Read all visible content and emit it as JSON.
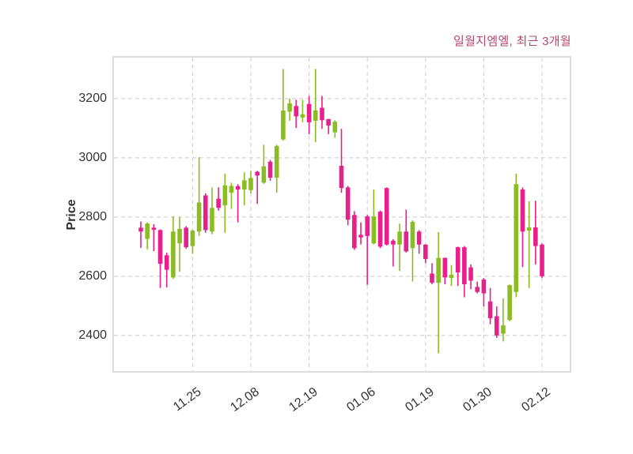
{
  "title": "일월지엠엘, 최근 3개월",
  "ylabel": "Price",
  "chart_data": {
    "type": "candlestick",
    "title": "일월지엠엘, 최근 3개월",
    "ylabel": "Price",
    "xlabel": "",
    "grid": true,
    "ylim": [
      2277,
      3341
    ],
    "yticks": [
      2400,
      2600,
      2800,
      3000,
      3200
    ],
    "xtick_labels": [
      "11.25",
      "12.08",
      "12.19",
      "01.06",
      "01.19",
      "01.30",
      "02.12"
    ],
    "xtick_indices": [
      8,
      17,
      26,
      35,
      44,
      53,
      62
    ],
    "colors": {
      "bull": "#8BBD22",
      "bear": "#E7218C",
      "grid": "#d4d4d4",
      "spine": "#dcdcdc",
      "tick_text": "#333333",
      "title_text": "#b5476f"
    },
    "series_note": "candles are [open, high, low, close]; bull=green (close>open), bear=pink (close<open)",
    "candles": [
      [
        2764,
        2785,
        2696,
        2751
      ],
      [
        2726,
        2782,
        2691,
        2778
      ],
      [
        2764,
        2776,
        2685,
        2757
      ],
      [
        2756,
        2758,
        2560,
        2642
      ],
      [
        2671,
        2680,
        2562,
        2622
      ],
      [
        2596,
        2802,
        2591,
        2751
      ],
      [
        2711,
        2800,
        2615,
        2760
      ],
      [
        2764,
        2769,
        2693,
        2698
      ],
      [
        2702,
        2757,
        2676,
        2754
      ],
      [
        2751,
        3002,
        2736,
        2849
      ],
      [
        2873,
        2880,
        2747,
        2756
      ],
      [
        2751,
        2900,
        2742,
        2831
      ],
      [
        2862,
        2900,
        2822,
        2831
      ],
      [
        2840,
        2947,
        2747,
        2907
      ],
      [
        2882,
        2916,
        2827,
        2905
      ],
      [
        2904,
        2911,
        2782,
        2893
      ],
      [
        2893,
        2951,
        2840,
        2924
      ],
      [
        2891,
        2956,
        2880,
        2932
      ],
      [
        2953,
        2956,
        2844,
        2940
      ],
      [
        2916,
        3044,
        2912,
        2971
      ],
      [
        2987,
        2993,
        2922,
        2933
      ],
      [
        2933,
        3044,
        2882,
        3040
      ],
      [
        3062,
        3300,
        3058,
        3160
      ],
      [
        3156,
        3200,
        3125,
        3184
      ],
      [
        3175,
        3196,
        3101,
        3140
      ],
      [
        3136,
        3196,
        3120,
        3147
      ],
      [
        3182,
        3209,
        3080,
        3120
      ],
      [
        3125,
        3300,
        3053,
        3160
      ],
      [
        3169,
        3209,
        3098,
        3127
      ],
      [
        3131,
        3131,
        3080,
        3109
      ],
      [
        3086,
        3127,
        3068,
        3122
      ],
      [
        2973,
        3098,
        2882,
        2898
      ],
      [
        2900,
        2905,
        2772,
        2791
      ],
      [
        2807,
        2820,
        2689,
        2695
      ],
      [
        2740,
        2782,
        2707,
        2731
      ],
      [
        2802,
        2807,
        2571,
        2736
      ],
      [
        2711,
        2893,
        2707,
        2802
      ],
      [
        2818,
        2822,
        2695,
        2700
      ],
      [
        2898,
        2900,
        2704,
        2707
      ],
      [
        2720,
        2725,
        2633,
        2707
      ],
      [
        2707,
        2778,
        2618,
        2751
      ],
      [
        2751,
        2825,
        2680,
        2684
      ],
      [
        2695,
        2789,
        2582,
        2784
      ],
      [
        2751,
        2756,
        2676,
        2707
      ],
      [
        2707,
        2708,
        2644,
        2658
      ],
      [
        2609,
        2644,
        2573,
        2578
      ],
      [
        2578,
        2749,
        2340,
        2662
      ],
      [
        2662,
        2663,
        2573,
        2596
      ],
      [
        2594,
        2638,
        2567,
        2605
      ],
      [
        2698,
        2700,
        2567,
        2613
      ],
      [
        2698,
        2702,
        2529,
        2573
      ],
      [
        2630,
        2640,
        2556,
        2585
      ],
      [
        2564,
        2582,
        2542,
        2547
      ],
      [
        2589,
        2594,
        2498,
        2542
      ],
      [
        2515,
        2560,
        2438,
        2458
      ],
      [
        2465,
        2498,
        2392,
        2400
      ],
      [
        2406,
        2525,
        2380,
        2434
      ],
      [
        2452,
        2572,
        2448,
        2570
      ],
      [
        2547,
        2947,
        2529,
        2911
      ],
      [
        2893,
        2900,
        2631,
        2751
      ],
      [
        2754,
        2853,
        2560,
        2765
      ],
      [
        2765,
        2855,
        2640,
        2702
      ],
      [
        2707,
        2711,
        2594,
        2600
      ]
    ]
  }
}
